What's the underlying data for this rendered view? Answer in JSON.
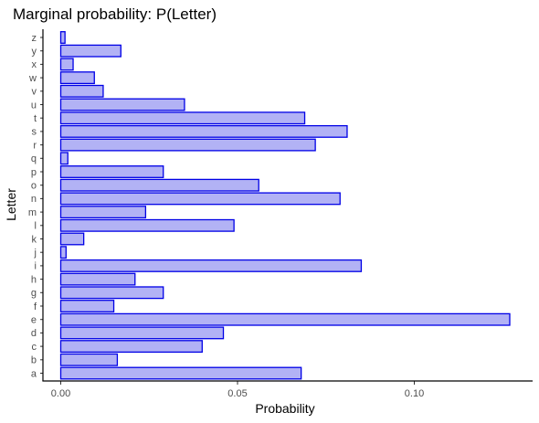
{
  "chart_data": {
    "type": "bar",
    "orientation": "horizontal",
    "title": "Marginal probability: P(Letter)",
    "xlabel": "Probability",
    "ylabel": "Letter",
    "xlim": [
      0,
      0.13
    ],
    "x_ticks": [
      0.0,
      0.05,
      0.1
    ],
    "x_tick_labels": [
      "0.00",
      "0.05",
      "0.10"
    ],
    "grid": false,
    "colors": {
      "bar_fill": "#b2b2f5",
      "bar_stroke": "#0000e6"
    },
    "categories": [
      "a",
      "b",
      "c",
      "d",
      "e",
      "f",
      "g",
      "h",
      "i",
      "j",
      "k",
      "l",
      "m",
      "n",
      "o",
      "p",
      "q",
      "r",
      "s",
      "t",
      "u",
      "v",
      "w",
      "x",
      "y",
      "z"
    ],
    "values": [
      0.068,
      0.016,
      0.04,
      0.046,
      0.127,
      0.015,
      0.029,
      0.021,
      0.085,
      0.0015,
      0.0065,
      0.049,
      0.024,
      0.079,
      0.056,
      0.029,
      0.002,
      0.072,
      0.081,
      0.069,
      0.035,
      0.012,
      0.0095,
      0.0035,
      0.017,
      0.0012
    ]
  }
}
